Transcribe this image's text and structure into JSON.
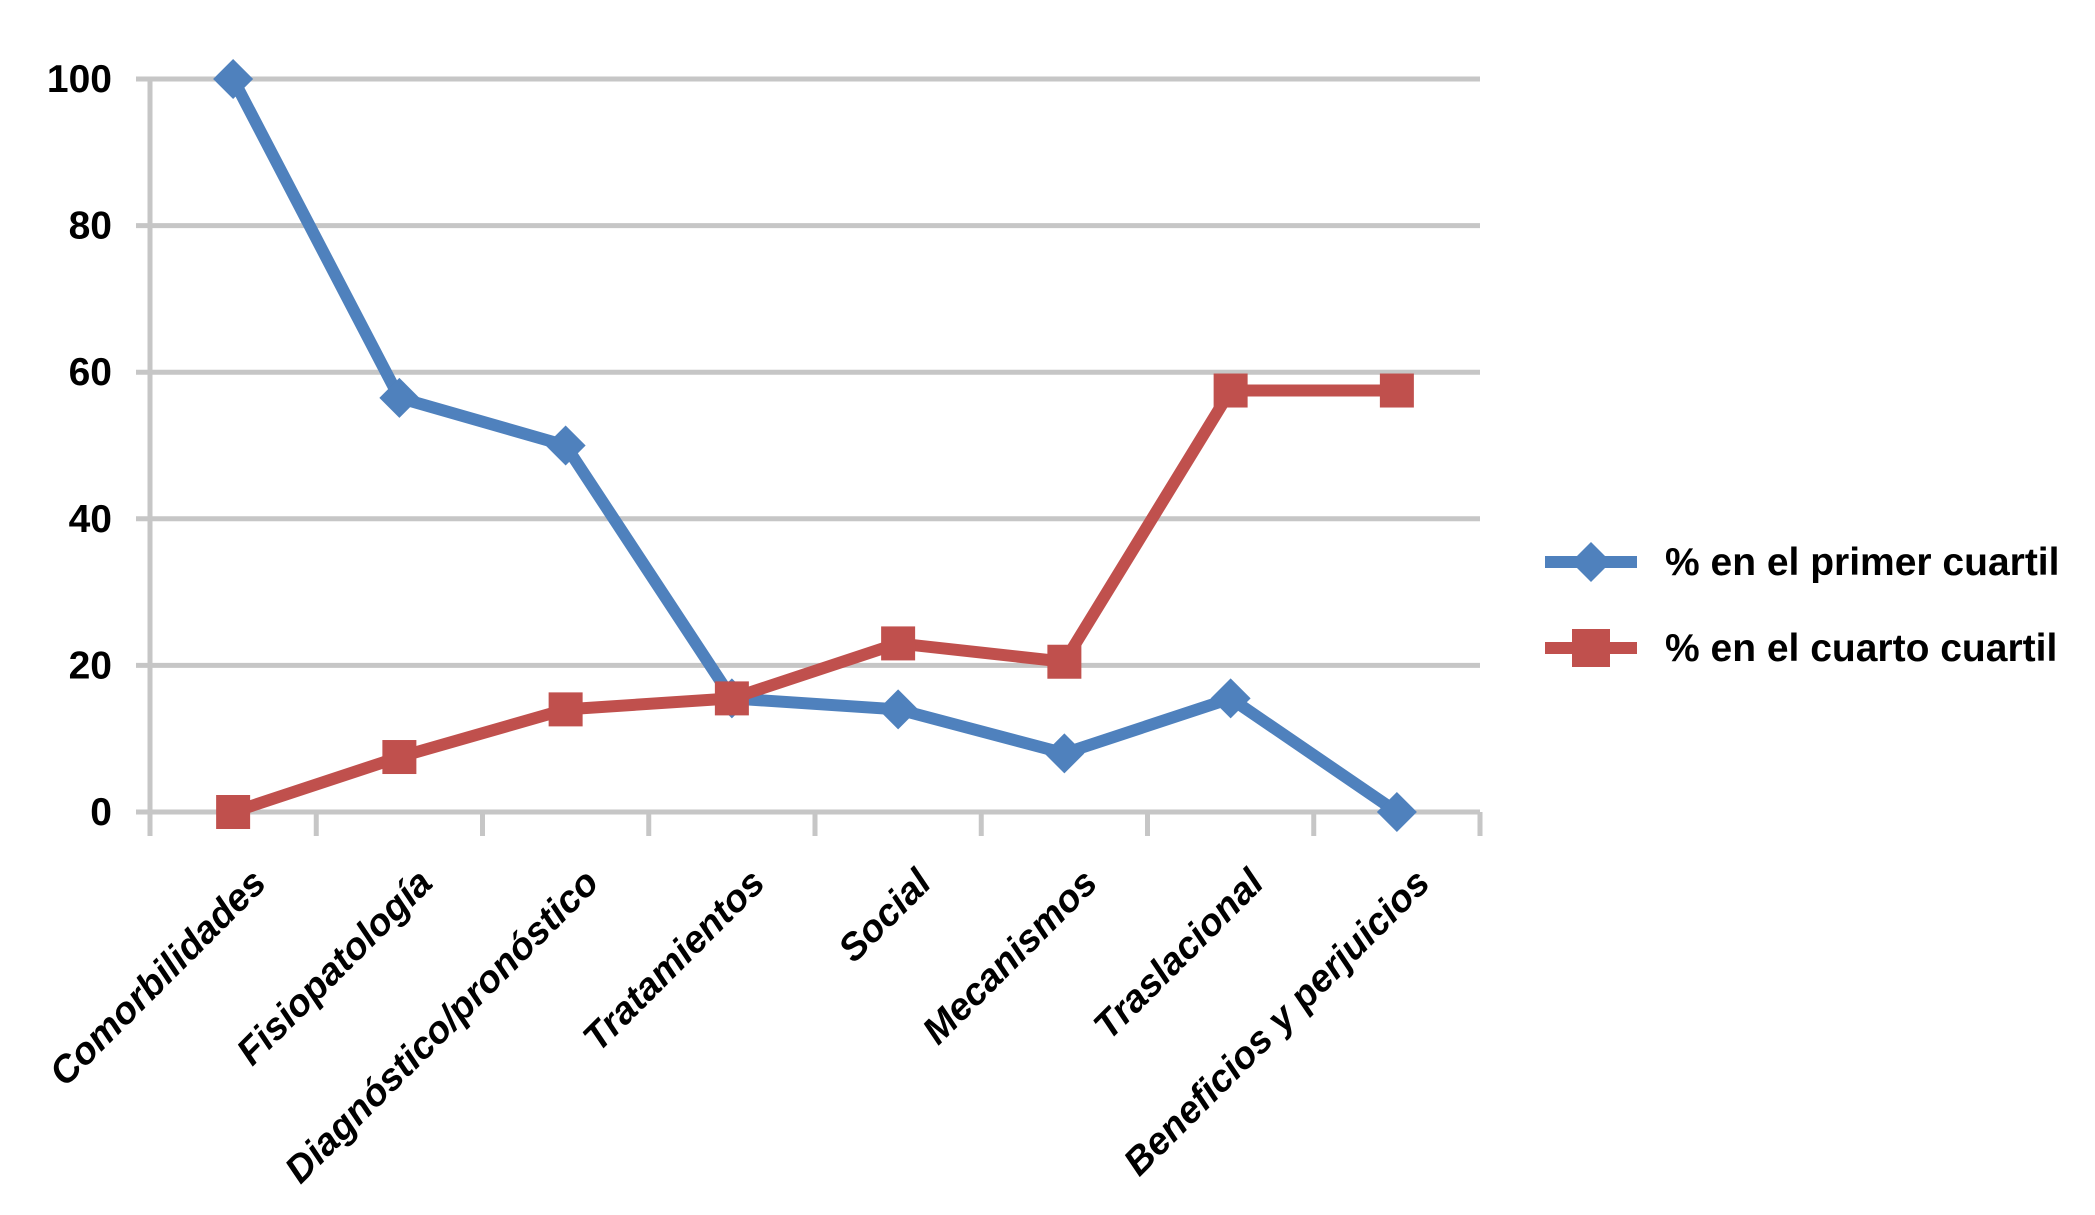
{
  "figure": {
    "background": "#FFFFFF"
  },
  "chart_data": {
    "type": "line",
    "title": "",
    "categories": [
      "Comorbilidades",
      "Fisiopatología",
      "Diagnóstico/pronóstico",
      "Tratamientos",
      "Social",
      "Mecanismos",
      "Traslacional",
      "Beneficios y perjuicios"
    ],
    "series": [
      {
        "name": "% en el primer cuartil",
        "color": "#4F81BD",
        "marker": "diamond",
        "values": [
          100,
          56.5,
          50,
          15.5,
          14,
          8,
          15.5,
          0
        ]
      },
      {
        "name": "% en el cuarto cuartil",
        "color": "#C0504D",
        "marker": "square",
        "values": [
          0,
          7.5,
          14,
          15.5,
          23,
          20.5,
          57.5,
          57.5
        ]
      }
    ],
    "xlabel": "",
    "ylabel": "",
    "ylim": [
      0,
      100
    ],
    "yticks": [
      0,
      20,
      40,
      60,
      80,
      100
    ],
    "ytick_labels": [
      "0",
      "20",
      "40",
      "60",
      "80",
      "100"
    ],
    "grid": "horizontal",
    "gridline_color": "#C6C6C6",
    "axis_color": "#C6C6C6",
    "text_color": "#000000",
    "legend_position": "right-center",
    "x_label_rotation_deg": -45
  }
}
